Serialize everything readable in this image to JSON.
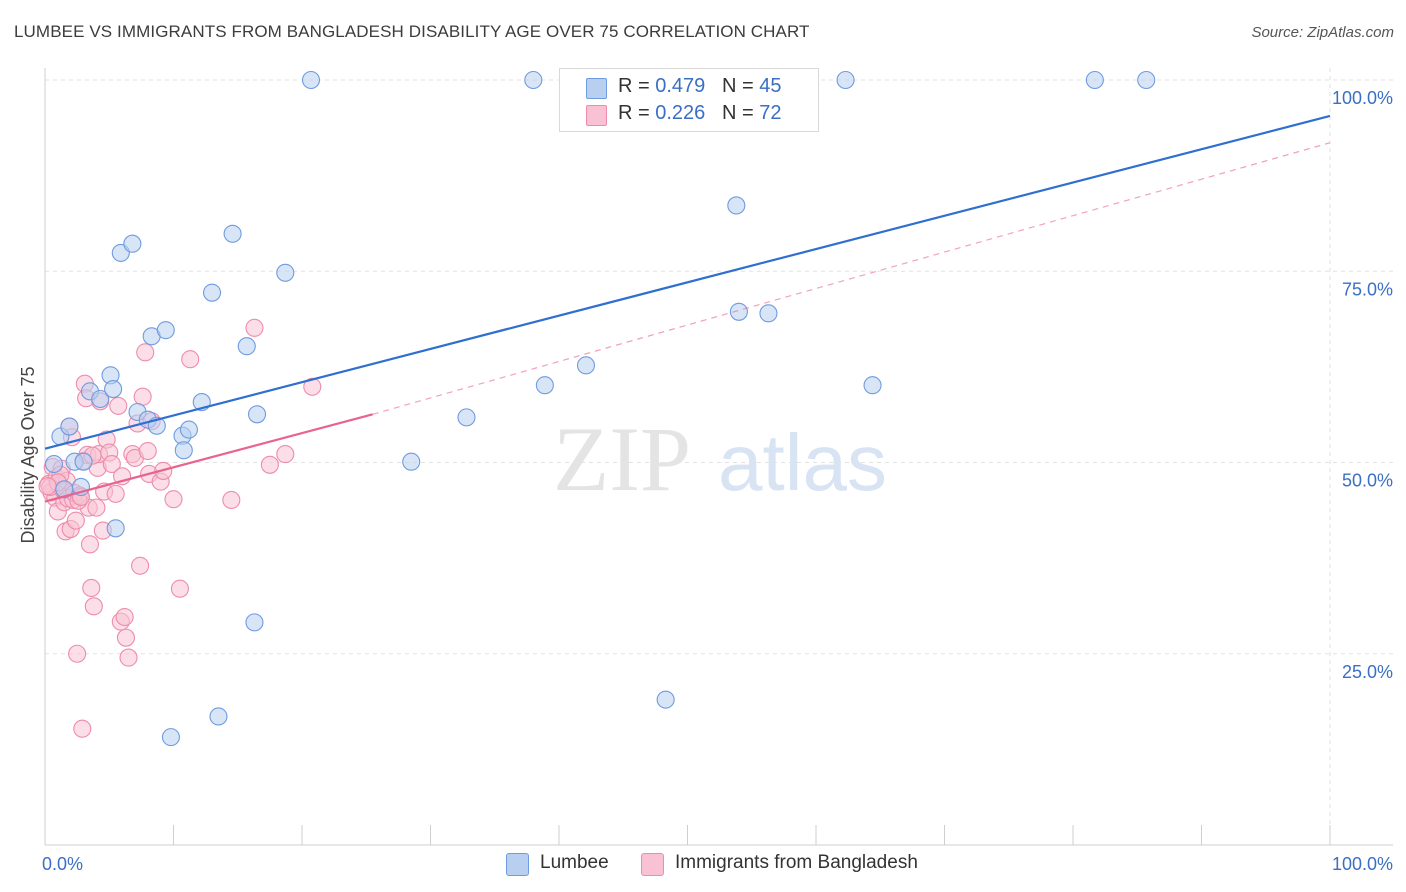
{
  "header": {
    "title": "LUMBEE VS IMMIGRANTS FROM BANGLADESH DISABILITY AGE OVER 75 CORRELATION CHART",
    "source": "Source: ZipAtlas.com"
  },
  "watermark": {
    "zip": "ZIP",
    "atlas": "atlas"
  },
  "legend_top": [
    {
      "r_label": "R = ",
      "r_value": "0.479",
      "n_label": "N = ",
      "n_value": "45"
    },
    {
      "r_label": "R = ",
      "r_value": "0.226",
      "n_label": "N = ",
      "n_value": "72"
    }
  ],
  "legend_bottom": [
    {
      "label": "Lumbee"
    },
    {
      "label": "Immigrants from Bangladesh"
    }
  ],
  "colors": {
    "lumbee_fill": "#b8cff0",
    "lumbee_stroke": "#6f9be0",
    "lumbee_line": "#2f6fd0",
    "bangladesh_fill": "#f8c2d4",
    "bangladesh_stroke": "#ee8cac",
    "bangladesh_line": "#e8648f",
    "axis_text": "#3a6fc4",
    "grid": "#e2e2e2"
  },
  "chart_data": {
    "type": "scatter",
    "title": "LUMBEE VS IMMIGRANTS FROM BANGLADESH DISABILITY AGE OVER 75 CORRELATION CHART",
    "xlabel": "",
    "ylabel": "Disability Age Over 75",
    "xlim": [
      0,
      100
    ],
    "ylim": [
      0,
      105
    ],
    "x_tick_labels": [
      {
        "value": 0,
        "label": "0.0%"
      },
      {
        "value": 100,
        "label": "100.0%"
      }
    ],
    "y_tick_labels": [
      {
        "value": 25,
        "label": "25.0%"
      },
      {
        "value": 50,
        "label": "50.0%"
      },
      {
        "value": 75,
        "label": "75.0%"
      },
      {
        "value": 100,
        "label": "100.0%"
      }
    ],
    "grid": true,
    "legend_position": "top-center",
    "series": [
      {
        "name": "Lumbee",
        "R": 0.479,
        "N": 45,
        "trend": {
          "x": [
            0,
            100
          ],
          "y": [
            51.8,
            95.3
          ]
        },
        "points": [
          [
            0.7,
            49.8
          ],
          [
            1.2,
            53.4
          ],
          [
            1.9,
            54.7
          ],
          [
            2.3,
            50.1
          ],
          [
            2.8,
            46.8
          ],
          [
            3.5,
            59.3
          ],
          [
            4.3,
            58.3
          ],
          [
            5.1,
            61.4
          ],
          [
            5.3,
            59.6
          ],
          [
            5.9,
            77.4
          ],
          [
            6.8,
            78.6
          ],
          [
            7.2,
            56.6
          ],
          [
            8.0,
            55.6
          ],
          [
            8.3,
            66.5
          ],
          [
            8.7,
            54.8
          ],
          [
            9.4,
            67.3
          ],
          [
            9.8,
            14.1
          ],
          [
            10.7,
            53.5
          ],
          [
            10.8,
            51.6
          ],
          [
            11.2,
            54.3
          ],
          [
            12.2,
            57.9
          ],
          [
            13.0,
            72.2
          ],
          [
            13.5,
            16.8
          ],
          [
            14.6,
            79.9
          ],
          [
            15.7,
            65.2
          ],
          [
            16.3,
            29.1
          ],
          [
            16.5,
            56.3
          ],
          [
            18.7,
            74.8
          ],
          [
            20.7,
            100
          ],
          [
            28.5,
            50.1
          ],
          [
            32.8,
            55.9
          ],
          [
            38.0,
            100
          ],
          [
            38.9,
            60.1
          ],
          [
            42.1,
            62.7
          ],
          [
            48.3,
            19.0
          ],
          [
            53.8,
            83.6
          ],
          [
            54.0,
            69.7
          ],
          [
            56.3,
            69.5
          ],
          [
            62.3,
            100
          ],
          [
            64.4,
            60.1
          ],
          [
            81.7,
            100
          ],
          [
            85.7,
            100
          ],
          [
            5.5,
            41.4
          ],
          [
            3.0,
            50.1
          ],
          [
            1.5,
            46.5
          ]
        ]
      },
      {
        "name": "Immigrants from Bangladesh",
        "R": 0.226,
        "N": 72,
        "trend": {
          "x": [
            0,
            25.5
          ],
          "y": [
            44.9,
            56.3
          ],
          "dashed_extension": {
            "x": [
              25.5,
              100
            ],
            "y": [
              56.3,
              91.8
            ]
          }
        },
        "points": [
          [
            0.3,
            47.2
          ],
          [
            0.5,
            46.1
          ],
          [
            0.6,
            49.4
          ],
          [
            0.8,
            45.4
          ],
          [
            0.9,
            48.0
          ],
          [
            1.0,
            43.6
          ],
          [
            1.1,
            47.0
          ],
          [
            1.3,
            49.2
          ],
          [
            1.4,
            46.4
          ],
          [
            1.5,
            44.8
          ],
          [
            1.6,
            41.0
          ],
          [
            1.7,
            47.6
          ],
          [
            1.8,
            45.3
          ],
          [
            1.9,
            54.7
          ],
          [
            2.0,
            41.3
          ],
          [
            2.1,
            53.3
          ],
          [
            2.2,
            45.1
          ],
          [
            2.3,
            46.0
          ],
          [
            2.4,
            42.4
          ],
          [
            2.5,
            25.0
          ],
          [
            2.7,
            45.7
          ],
          [
            2.9,
            15.2
          ],
          [
            3.0,
            50.2
          ],
          [
            3.1,
            60.3
          ],
          [
            3.2,
            58.4
          ],
          [
            3.3,
            51.0
          ],
          [
            3.4,
            44.1
          ],
          [
            3.5,
            39.3
          ],
          [
            3.6,
            33.6
          ],
          [
            3.8,
            31.2
          ],
          [
            4.0,
            44.1
          ],
          [
            4.1,
            49.3
          ],
          [
            4.2,
            51.1
          ],
          [
            4.3,
            58.0
          ],
          [
            4.5,
            41.1
          ],
          [
            4.6,
            46.2
          ],
          [
            4.8,
            53.0
          ],
          [
            5.0,
            51.3
          ],
          [
            5.2,
            49.8
          ],
          [
            5.5,
            45.9
          ],
          [
            5.7,
            57.4
          ],
          [
            5.9,
            29.2
          ],
          [
            6.2,
            29.8
          ],
          [
            6.3,
            27.1
          ],
          [
            6.5,
            24.5
          ],
          [
            6.8,
            51.1
          ],
          [
            7.0,
            50.6
          ],
          [
            7.2,
            55.1
          ],
          [
            7.4,
            36.5
          ],
          [
            7.6,
            58.6
          ],
          [
            7.8,
            64.4
          ],
          [
            8.0,
            51.5
          ],
          [
            8.1,
            48.5
          ],
          [
            8.3,
            55.4
          ],
          [
            9.0,
            47.5
          ],
          [
            9.2,
            48.9
          ],
          [
            10.0,
            45.2
          ],
          [
            10.5,
            33.5
          ],
          [
            11.3,
            63.5
          ],
          [
            14.5,
            45.1
          ],
          [
            16.3,
            67.6
          ],
          [
            17.5,
            49.7
          ],
          [
            18.7,
            51.1
          ],
          [
            20.8,
            59.9
          ],
          [
            0.4,
            46.8
          ],
          [
            1.2,
            48.4
          ],
          [
            2.6,
            45.0
          ],
          [
            3.7,
            50.9
          ],
          [
            1.0,
            47.4
          ],
          [
            0.2,
            46.9
          ],
          [
            2.8,
            45.5
          ],
          [
            6.0,
            48.2
          ]
        ]
      }
    ]
  }
}
